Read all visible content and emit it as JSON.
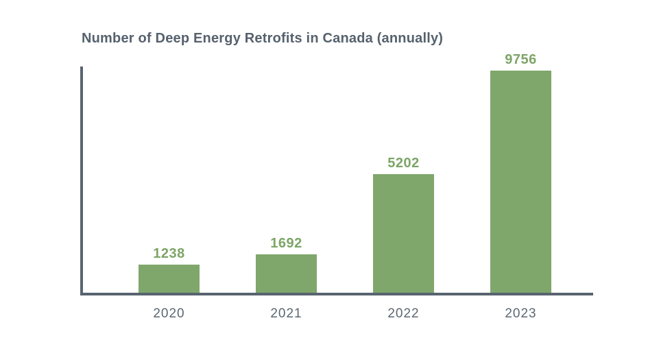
{
  "page": {
    "background_color": "#ffffff"
  },
  "chart_data": {
    "type": "bar",
    "title": "Number of Deep Energy Retrofits in Canada (annually)",
    "categories": [
      "2020",
      "2021",
      "2022",
      "2023"
    ],
    "values": [
      1238,
      1692,
      5202,
      9756
    ],
    "xlabel": "",
    "ylabel": "",
    "ylim": [
      0,
      10000
    ],
    "grid": false,
    "legend": null,
    "value_labels_shown": true,
    "bar_color": "#7fa76c",
    "value_label_color": "#7ca566",
    "axis_color": "#596470",
    "title_color": "#56616d",
    "tick_label_color": "#5b6772"
  }
}
